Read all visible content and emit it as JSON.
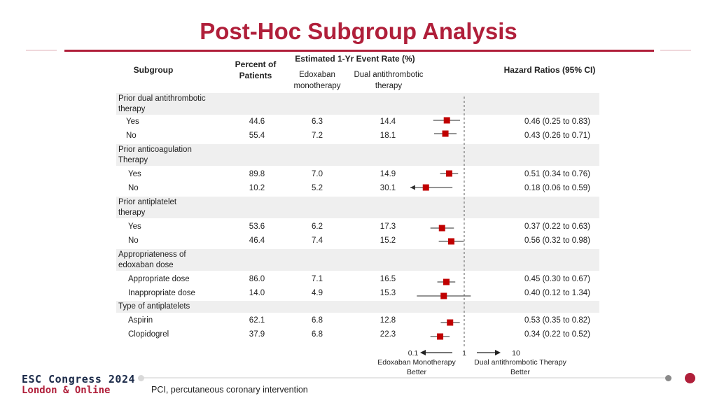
{
  "title": "Post-Hoc Subgroup Analysis",
  "headers": {
    "subgroup": "Subgroup",
    "percent_line1": "Percent of",
    "percent_line2": "Patients",
    "event_rate": "Estimated 1-Yr Event Rate (%)",
    "edox_line1": "Edoxaban",
    "edox_line2": "monotherapy",
    "dat_line1": "Dual antithrombotic",
    "dat_line2": "therapy",
    "hr": "Hazard Ratios (95% CI)"
  },
  "groups": [
    {
      "label1": "Prior dual antithrombotic",
      "label2": "therapy"
    },
    {
      "label1": "Prior anticoagulation",
      "label2": "Therapy"
    },
    {
      "label1": "Prior antiplatelet",
      "label2": "therapy"
    },
    {
      "label1": "Appropriateness of",
      "label2": "edoxaban dose"
    },
    {
      "label1": "Type of antiplatelets",
      "label2": ""
    }
  ],
  "rows": [
    {
      "label": "Yes",
      "pct": "44.6",
      "edox": "6.3",
      "dat": "14.4",
      "hr_text": "0.46 (0.25 to 0.83)"
    },
    {
      "label": "No",
      "pct": "55.4",
      "edox": "7.2",
      "dat": "18.1",
      "hr_text": "0.43 (0.26 to 0.71)"
    },
    {
      "label": "Yes",
      "pct": "89.8",
      "edox": "7.0",
      "dat": "14.9",
      "hr_text": "0.51 (0.34 to 0.76)"
    },
    {
      "label": "No",
      "pct": "10.2",
      "edox": "5.2",
      "dat": "30.1",
      "hr_text": "0.18 (0.06 to 0.59)"
    },
    {
      "label": "Yes",
      "pct": "53.6",
      "edox": "6.2",
      "dat": "17.3",
      "hr_text": "0.37 (0.22 to 0.63)"
    },
    {
      "label": "No",
      "pct": "46.4",
      "edox": "7.4",
      "dat": "15.2",
      "hr_text": "0.56 (0.32 to 0.98)"
    },
    {
      "label": "Appropriate dose",
      "pct": "86.0",
      "edox": "7.1",
      "dat": "16.5",
      "hr_text": "0.45 (0.30 to 0.67)"
    },
    {
      "label": "Inappropriate dose",
      "pct": "14.0",
      "edox": "4.9",
      "dat": "15.3",
      "hr_text": "0.40 (0.12 to 1.34)"
    },
    {
      "label": "Aspirin",
      "pct": "62.1",
      "edox": "6.8",
      "dat": "12.8",
      "hr_text": "0.53 (0.35 to 0.82)"
    },
    {
      "label": "Clopidogrel",
      "pct": "37.9",
      "edox": "6.8",
      "dat": "22.3",
      "hr_text": "0.34 (0.22 to 0.52)"
    }
  ],
  "chart_data": {
    "type": "forest",
    "x_scale": "log",
    "xlim": [
      0.1,
      10
    ],
    "reference_line": 1,
    "ticks": [
      "0.1",
      "1",
      "10"
    ],
    "left_label_line1": "Edoxaban Monotherapy",
    "left_label_line2": "Better",
    "right_label_line1": "Dual antithrombotic Therapy",
    "right_label_line2": "Better",
    "marker_color": "#c00000",
    "points": [
      {
        "hr": 0.46,
        "lo": 0.25,
        "hi": 0.83
      },
      {
        "hr": 0.43,
        "lo": 0.26,
        "hi": 0.71
      },
      {
        "hr": 0.51,
        "lo": 0.34,
        "hi": 0.76
      },
      {
        "hr": 0.18,
        "lo": 0.06,
        "hi": 0.59
      },
      {
        "hr": 0.37,
        "lo": 0.22,
        "hi": 0.63
      },
      {
        "hr": 0.56,
        "lo": 0.32,
        "hi": 0.98
      },
      {
        "hr": 0.45,
        "lo": 0.3,
        "hi": 0.67
      },
      {
        "hr": 0.4,
        "lo": 0.12,
        "hi": 1.34
      },
      {
        "hr": 0.53,
        "lo": 0.35,
        "hi": 0.82
      },
      {
        "hr": 0.34,
        "lo": 0.22,
        "hi": 0.52
      }
    ]
  },
  "footer": {
    "logo_line1": "ESC Congress 2024",
    "logo_line2": "London & Online",
    "footnote": "PCI, percutaneous coronary intervention"
  },
  "colors": {
    "accent": "#b01f3a",
    "navy": "#1b2a49",
    "band": "#efefef"
  }
}
